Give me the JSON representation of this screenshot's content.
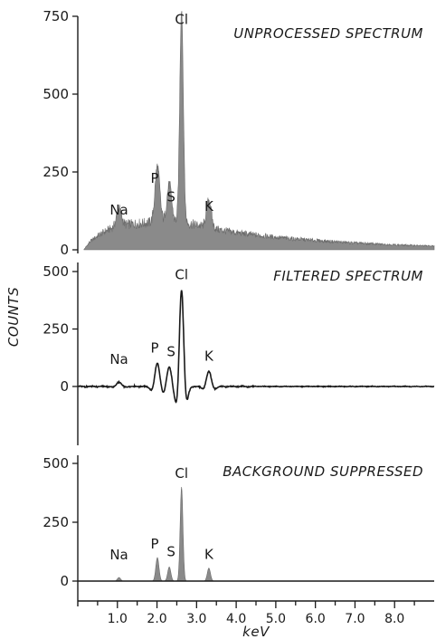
{
  "chart_data": [
    {
      "type": "area",
      "title": "UNPROCESSED SPECTRUM",
      "ylim": [
        0,
        800
      ],
      "yticks": [
        0,
        250,
        500,
        750
      ],
      "xlim": [
        0,
        9.0
      ],
      "background": [
        [
          0.15,
          0
        ],
        [
          0.3,
          25
        ],
        [
          0.5,
          45
        ],
        [
          0.7,
          60
        ],
        [
          0.9,
          72
        ],
        [
          1.1,
          80
        ],
        [
          1.3,
          82
        ],
        [
          1.6,
          85
        ],
        [
          1.9,
          88
        ],
        [
          2.2,
          90
        ],
        [
          2.6,
          88
        ],
        [
          3.0,
          80
        ],
        [
          3.4,
          68
        ],
        [
          4.0,
          55
        ],
        [
          5.0,
          40
        ],
        [
          6.0,
          30
        ],
        [
          7.0,
          22
        ],
        [
          8.0,
          16
        ],
        [
          9.0,
          12
        ]
      ],
      "peaks": [
        {
          "label": "Na",
          "center": 1.04,
          "height": 55
        },
        {
          "label": "P",
          "center": 2.01,
          "height": 180
        },
        {
          "label": "S",
          "center": 2.31,
          "height": 120
        },
        {
          "label": "Cl",
          "center": 2.62,
          "height": 690
        },
        {
          "label": "K",
          "center": 3.31,
          "height": 90
        }
      ]
    },
    {
      "type": "line",
      "title": "FILTERED SPECTRUM",
      "ylabel": "COUNTS",
      "ylim": [
        -150,
        500
      ],
      "yticks": [
        0,
        250,
        500
      ],
      "xlim": [
        0,
        9.0
      ],
      "peaks": [
        {
          "label": "Na",
          "center": 1.04,
          "height": 20
        },
        {
          "label": "P",
          "center": 2.01,
          "height": 100
        },
        {
          "label": "S",
          "center": 2.31,
          "height": 85
        },
        {
          "label": "Cl",
          "center": 2.62,
          "height": 420
        },
        {
          "label": "K",
          "center": 3.31,
          "height": 65
        }
      ]
    },
    {
      "type": "area",
      "title": "BACKGROUND SUPPRESSED",
      "ylim": [
        -40,
        500
      ],
      "yticks": [
        0,
        250,
        500
      ],
      "xlim": [
        0,
        9.0
      ],
      "xlabel": "keV",
      "xticks": [
        1.0,
        2.0,
        3.0,
        4.0,
        5.0,
        6.0,
        7.0,
        8.0
      ],
      "xtick_labels": [
        "1.0",
        "2.0",
        "3.0",
        "4.0",
        "5.0",
        "6.0",
        "7.0",
        "8.0"
      ],
      "peaks": [
        {
          "label": "Na",
          "center": 1.04,
          "height": 15
        },
        {
          "label": "P",
          "center": 2.01,
          "height": 100
        },
        {
          "label": "S",
          "center": 2.31,
          "height": 60
        },
        {
          "label": "Cl",
          "center": 2.62,
          "height": 400
        },
        {
          "label": "K",
          "center": 3.31,
          "height": 55
        }
      ]
    }
  ],
  "colors": {
    "ink": "#1a1a1a",
    "fill": "#8a8a8a"
  }
}
